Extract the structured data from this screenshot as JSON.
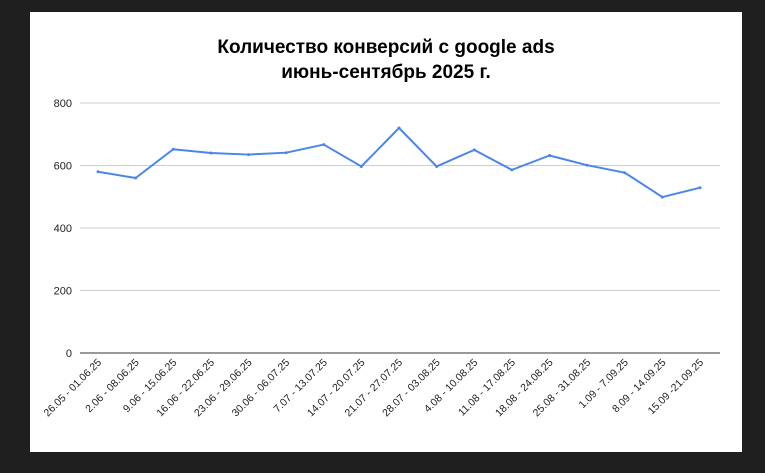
{
  "chart_data": {
    "type": "line",
    "title": "Количество конверсий с google ads",
    "subtitle": "июнь-сентябрь 2025 г.",
    "xlabel": "",
    "ylabel": "",
    "ylim": [
      0,
      800
    ],
    "yticks": [
      0,
      200,
      400,
      600,
      800
    ],
    "grid": true,
    "legend": "none",
    "categories": [
      "26.05 - 01.06.25",
      "2.06 - 08.06.25",
      "9.06 - 15.06.25",
      "16.06 - 22.06.25",
      "23.06 - 29.06.25",
      "30.06 - 06.07.25",
      "7.07 - 13.07.25",
      "14.07 - 20.07.25",
      "21.07 - 27.07.25",
      "28.07 - 03.08.25",
      "4.08 - 10.08.25",
      "11.08 - 17.08.25",
      "18.08 - 24.08.25",
      "25.08 - 31.08.25",
      "1.09 - 7.09.25",
      "8.09 - 14.09.25",
      "15.09 -21.09.25"
    ],
    "series": [
      {
        "values": [
          580,
          560,
          652,
          640,
          635,
          641,
          667,
          597,
          720,
          597,
          650,
          586,
          632,
          601,
          577,
          499,
          529
        ],
        "color": "#4a86e8"
      }
    ]
  }
}
